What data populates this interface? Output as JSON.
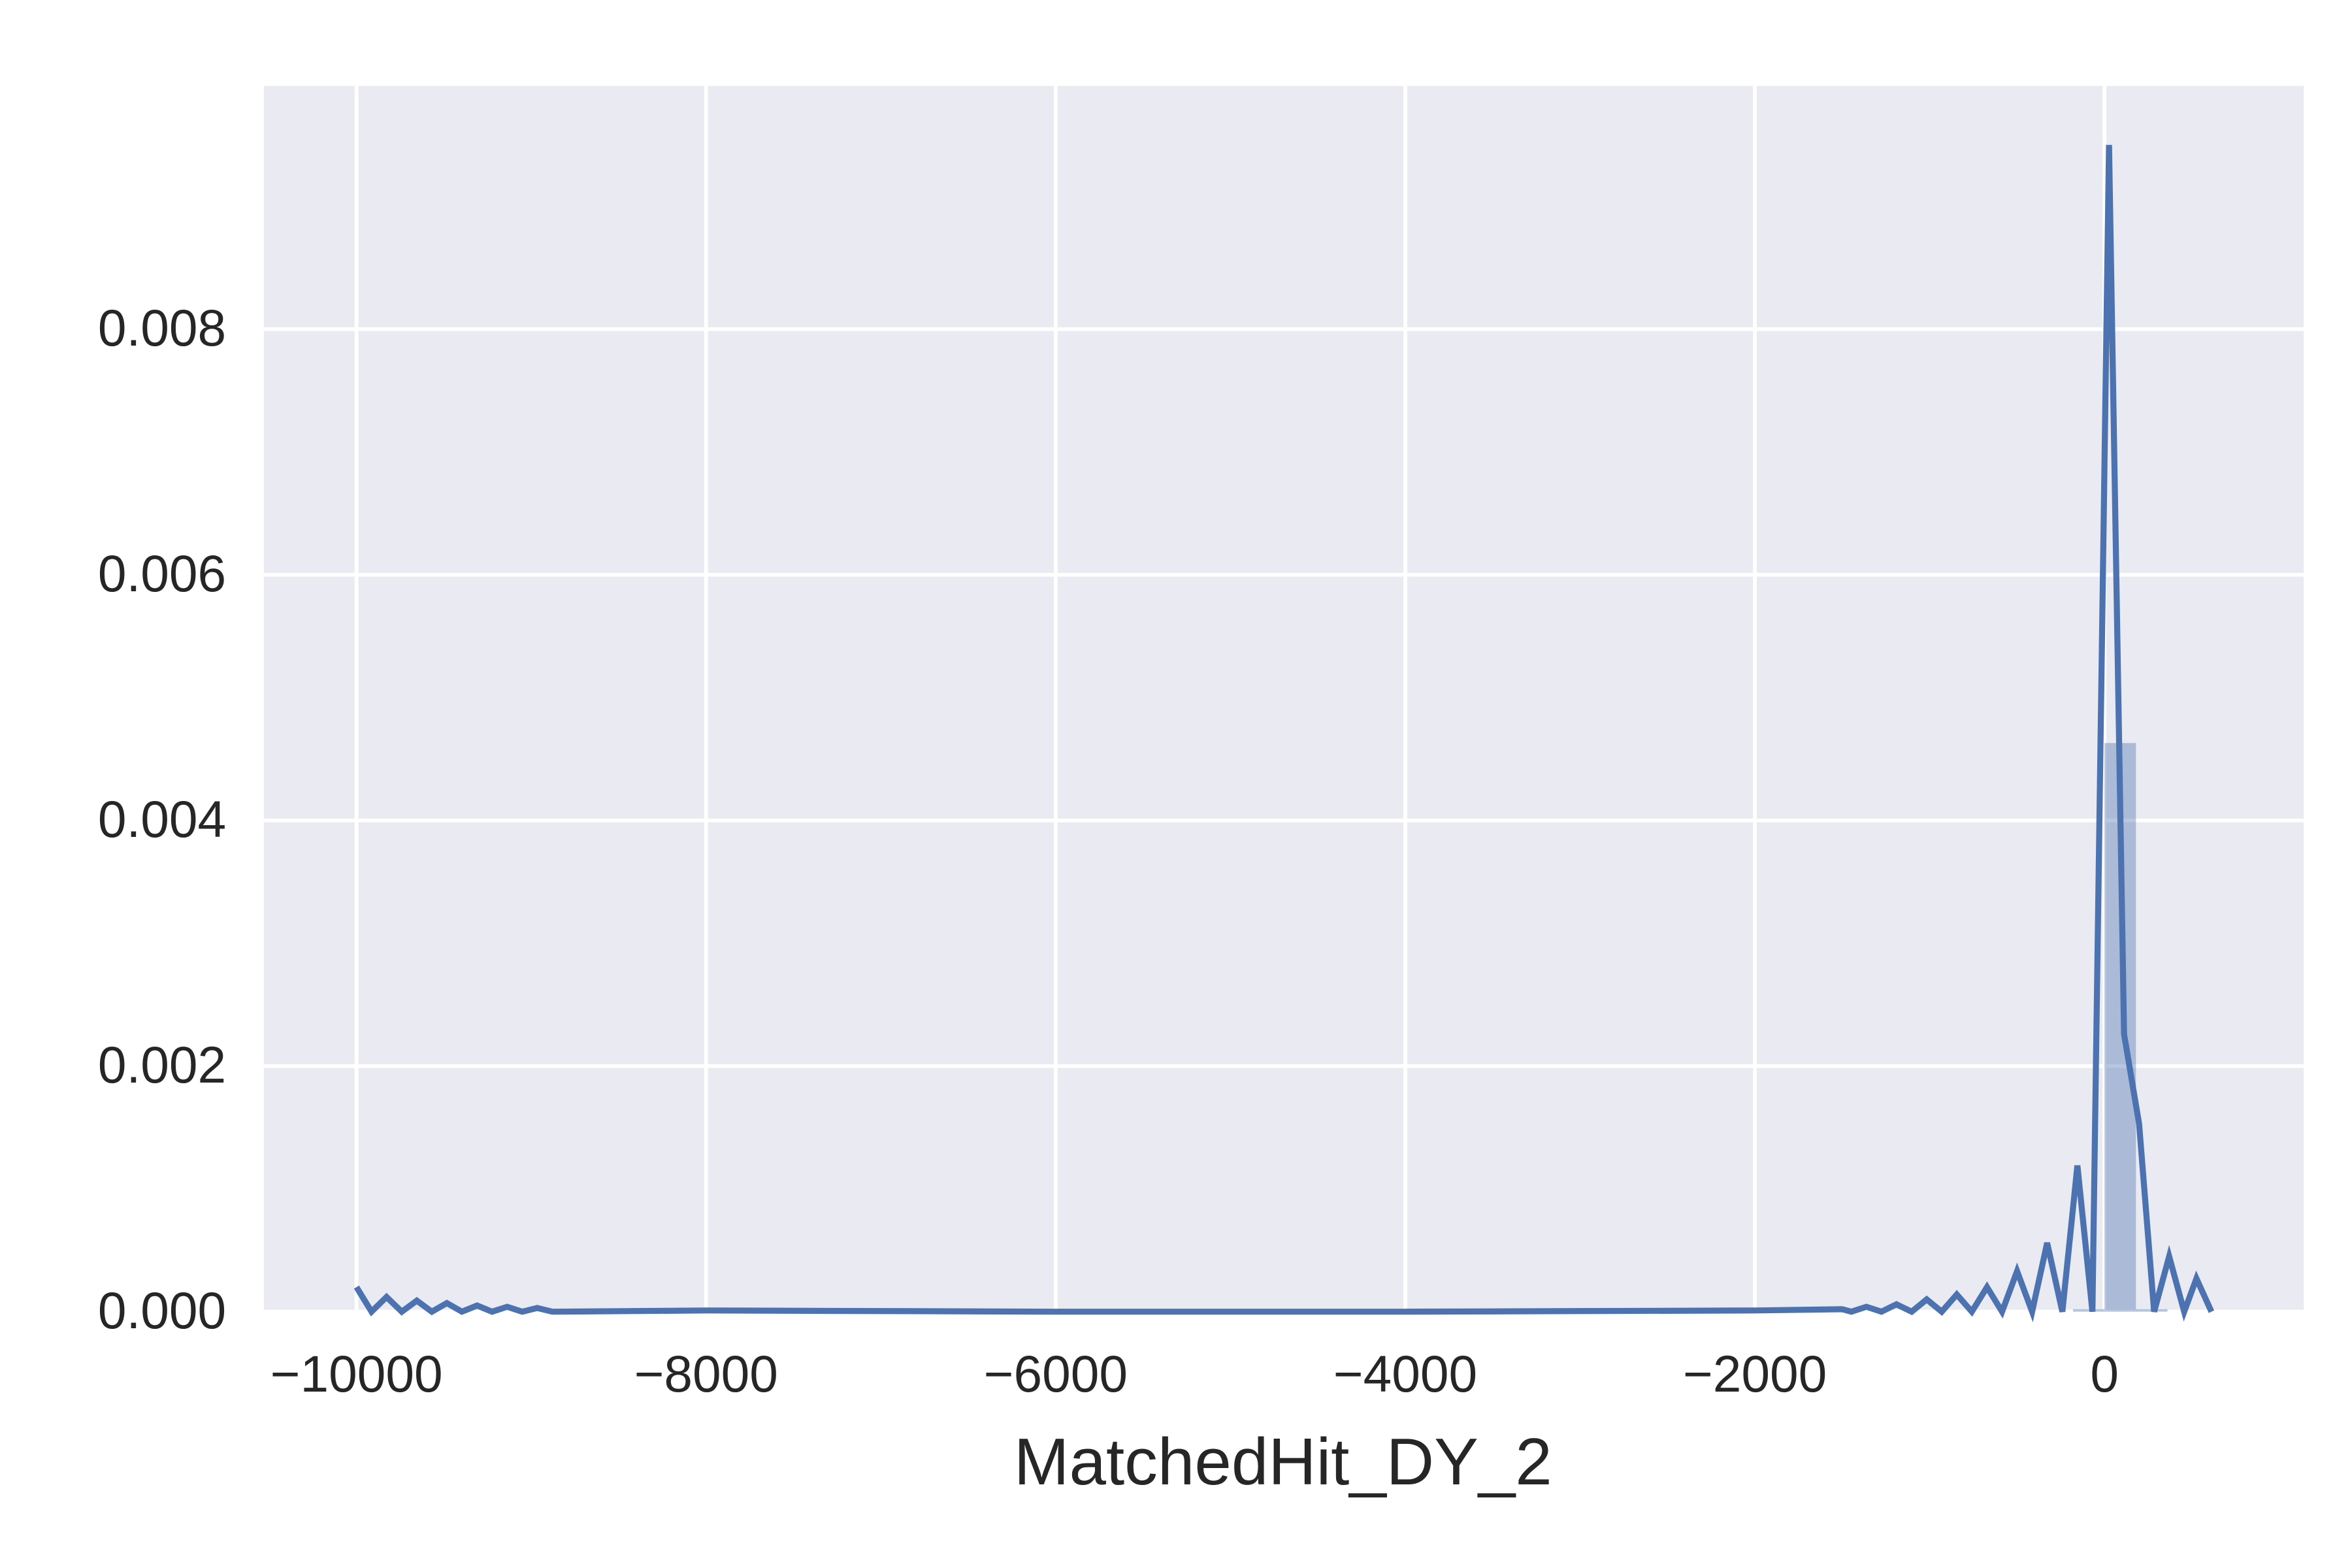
{
  "chart_data": {
    "type": "distplot",
    "xlabel": "MatchedHit_DY_2",
    "background": "#eaeaf2",
    "grid": true,
    "color": "#4c72b0",
    "bins": [
      -180,
      0,
      180,
      360
    ],
    "counts": [
      2e-05,
      0.00463,
      2e-05
    ],
    "kde": {
      "x": [
        -10000,
        -9914,
        -9828,
        -9741,
        -9655,
        -9569,
        -9483,
        -9397,
        -9310,
        -9224,
        -9138,
        -9052,
        -8966,
        -8879,
        -8000,
        -6000,
        -4000,
        -2000,
        -1500,
        -1448,
        -1362,
        -1276,
        -1190,
        -1103,
        -1017,
        -931,
        -845,
        -759,
        -672,
        -586,
        -500,
        -414,
        -328,
        -241,
        -155,
        -69,
        26,
        112,
        198,
        284,
        370,
        456,
        526,
        612
      ],
      "values": [
        0.0002,
        0,
        0.00012,
        0,
        9e-05,
        0,
        7e-05,
        0,
        5e-05,
        0,
        4e-05,
        0,
        3e-05,
        0,
        1e-05,
        0,
        0,
        1e-05,
        2e-05,
        0,
        4e-05,
        0,
        6e-05,
        0,
        0.0001,
        0,
        0.00014,
        0,
        0.0002,
        0,
        0.00033,
        0,
        0.00056,
        0,
        0.00119,
        0,
        0.0095,
        0.00226,
        0.00153,
        0,
        0.00045,
        0,
        0.00027,
        0
      ]
    },
    "xlim": [
      -10530,
      1140
    ],
    "ylim": [
      0,
      0.00998
    ],
    "xticks": [
      {
        "value": -10000,
        "label": "−10000"
      },
      {
        "value": -8000,
        "label": "−8000"
      },
      {
        "value": -6000,
        "label": "−6000"
      },
      {
        "value": -4000,
        "label": "−4000"
      },
      {
        "value": -2000,
        "label": "−2000"
      },
      0
    ],
    "yticks": [
      {
        "value": 0,
        "label": "0.000"
      },
      0.002,
      0.004,
      0.006,
      0.008
    ]
  }
}
